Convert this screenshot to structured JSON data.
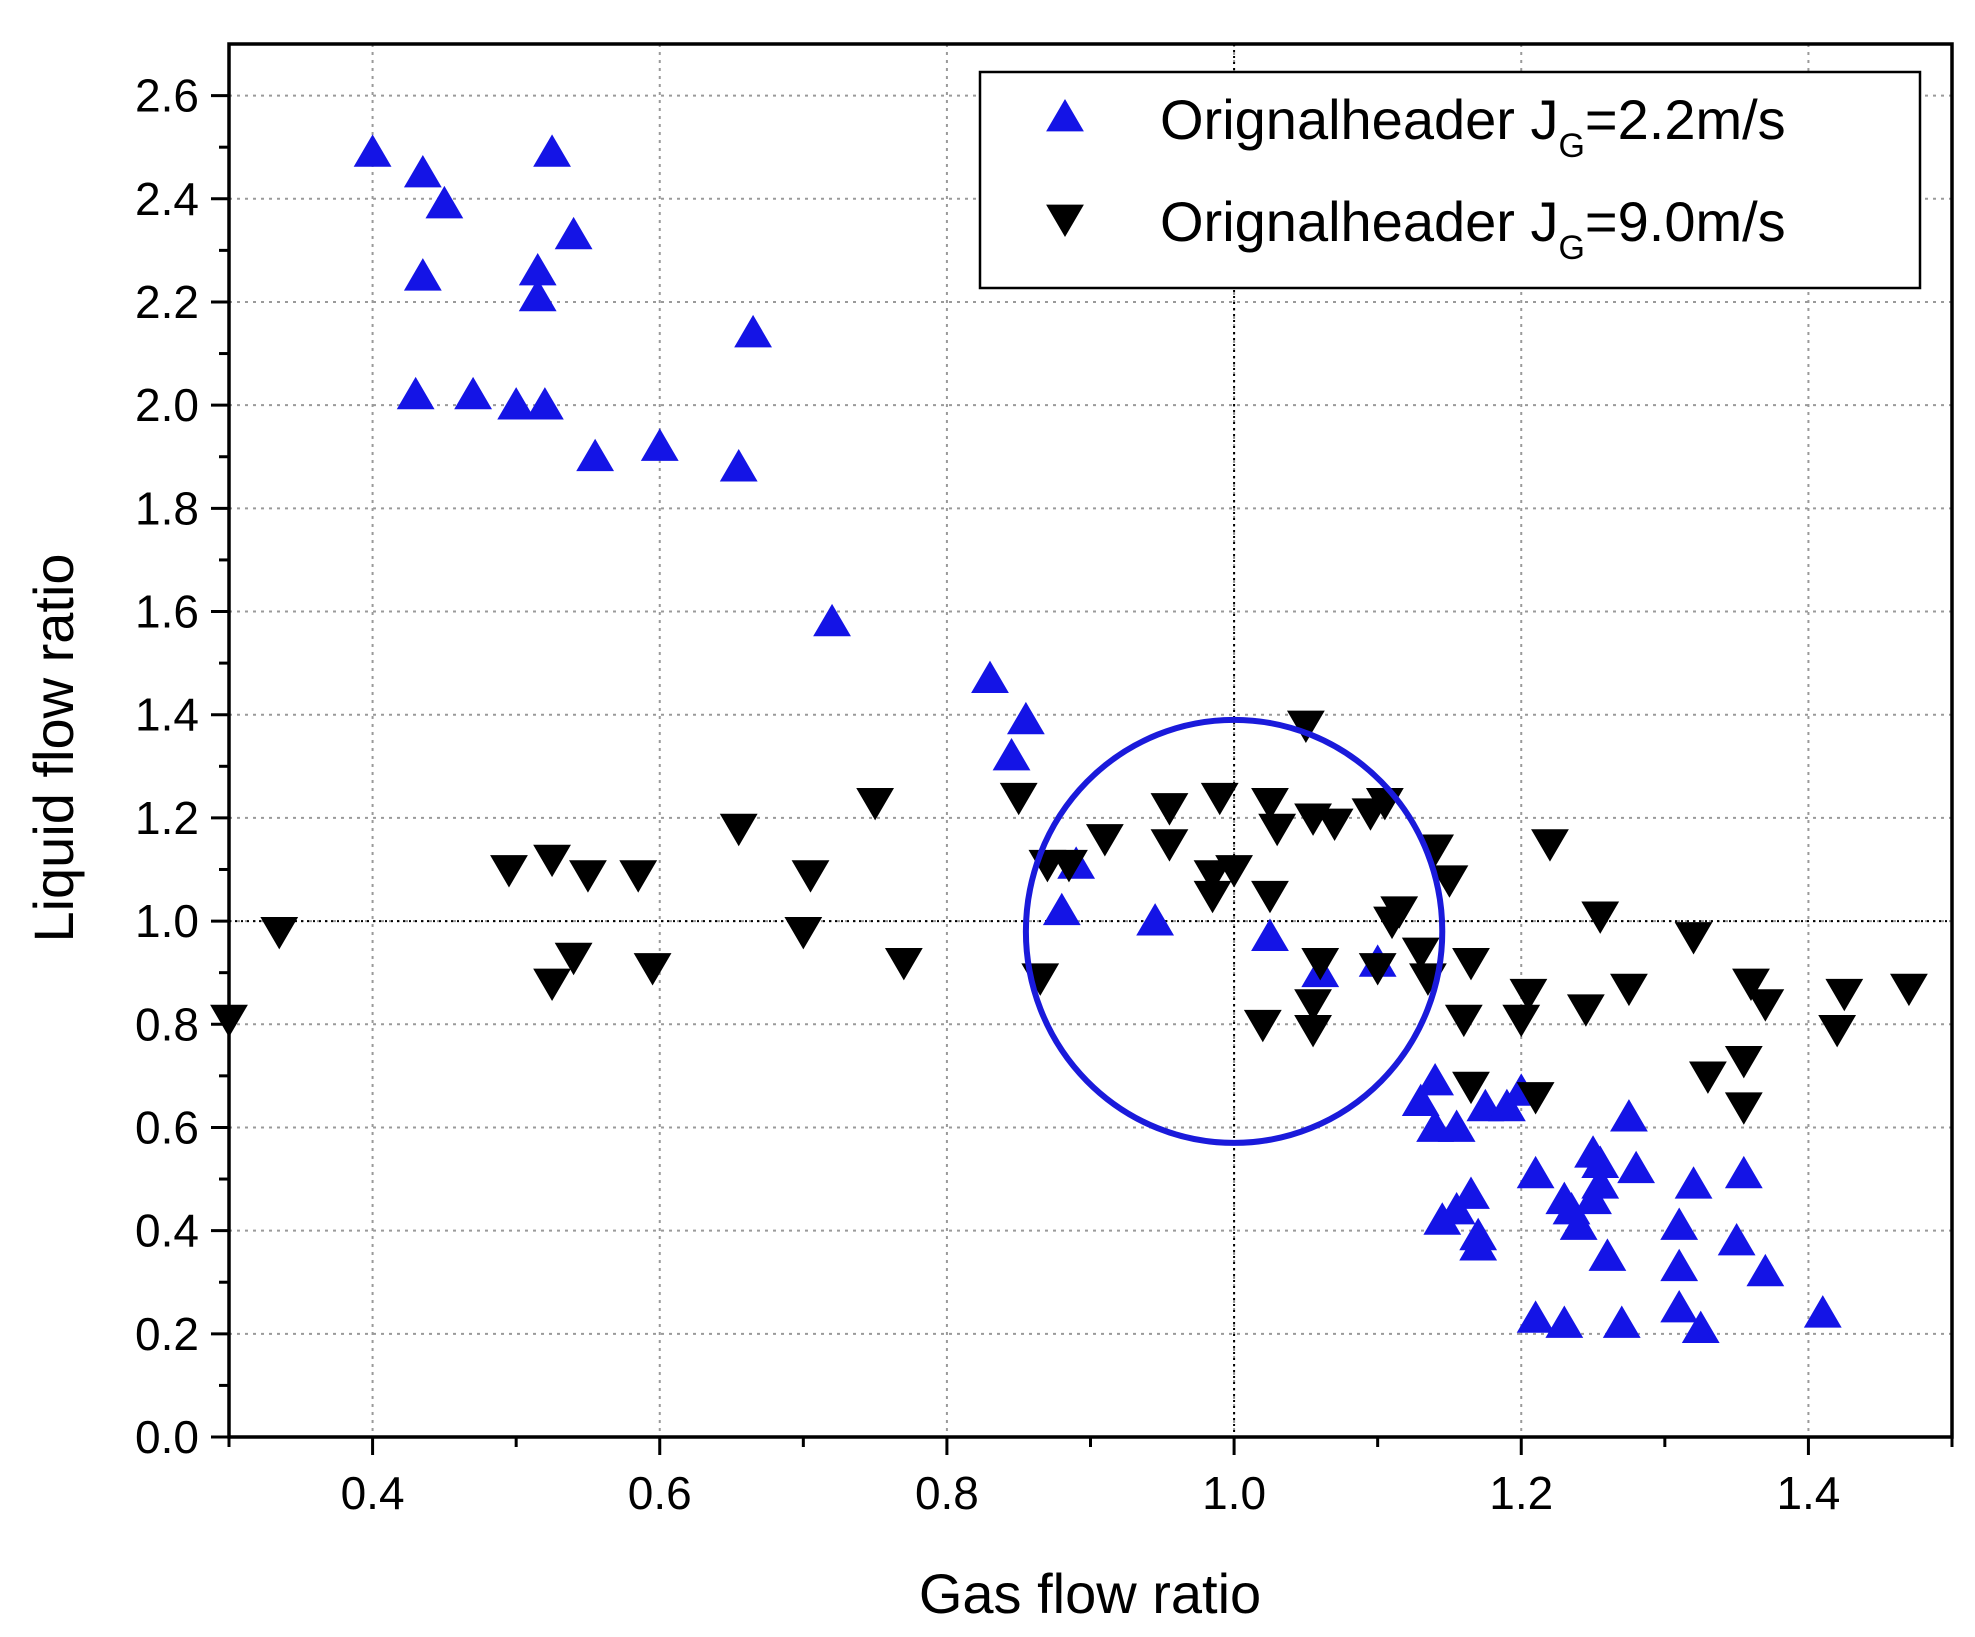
{
  "chart_data": {
    "type": "scatter",
    "title": "",
    "xlabel": "Gas flow ratio",
    "ylabel": "Liquid flow ratio",
    "xlim": [
      0.3,
      1.5
    ],
    "ylim": [
      0.0,
      2.7
    ],
    "x_ticks": [
      0.4,
      0.6,
      0.8,
      1.0,
      1.2,
      1.4
    ],
    "x_tick_labels": [
      "0.4",
      "0.6",
      "0.8",
      "1.0",
      "1.2",
      "1.4"
    ],
    "y_ticks": [
      0.0,
      0.2,
      0.4,
      0.6,
      0.8,
      1.0,
      1.2,
      1.4,
      1.6,
      1.8,
      2.0,
      2.2,
      2.4,
      2.6
    ],
    "y_tick_labels": [
      "0.0",
      "0.2",
      "0.4",
      "0.6",
      "0.8",
      "1.0",
      "1.2",
      "1.4",
      "1.6",
      "1.8",
      "2.0",
      "2.2",
      "2.4",
      "2.6"
    ],
    "grid": true,
    "legend_position": "top-right",
    "reference_lines": {
      "x": 1.0,
      "y": 1.0
    },
    "annotation_circle": {
      "cx": 1.0,
      "cy": 0.98,
      "rx": 0.145,
      "ry": 0.41,
      "color": "#1a1adb"
    },
    "series": [
      {
        "name": "Orignalheader",
        "legend_prefix": "Orignalheader J",
        "legend_subscript": "G",
        "legend_suffix": "=2.2m/s",
        "marker": "triangle-up",
        "color": "#1414e6",
        "points": [
          [
            0.4,
            2.49
          ],
          [
            0.435,
            2.45
          ],
          [
            0.45,
            2.39
          ],
          [
            0.435,
            2.25
          ],
          [
            0.525,
            2.49
          ],
          [
            0.54,
            2.33
          ],
          [
            0.515,
            2.26
          ],
          [
            0.515,
            2.21
          ],
          [
            0.43,
            2.02
          ],
          [
            0.47,
            2.02
          ],
          [
            0.5,
            2.0
          ],
          [
            0.52,
            2.0
          ],
          [
            0.555,
            1.9
          ],
          [
            0.6,
            1.92
          ],
          [
            0.655,
            1.88
          ],
          [
            0.665,
            2.14
          ],
          [
            0.72,
            1.58
          ],
          [
            0.83,
            1.47
          ],
          [
            0.855,
            1.39
          ],
          [
            0.845,
            1.32
          ],
          [
            0.89,
            1.11
          ],
          [
            0.88,
            1.02
          ],
          [
            0.945,
            1.0
          ],
          [
            1.025,
            0.97
          ],
          [
            1.06,
            0.9
          ],
          [
            1.1,
            0.92
          ],
          [
            1.14,
            0.69
          ],
          [
            1.13,
            0.65
          ],
          [
            1.14,
            0.6
          ],
          [
            1.155,
            0.6
          ],
          [
            1.175,
            0.64
          ],
          [
            1.19,
            0.64
          ],
          [
            1.2,
            0.67
          ],
          [
            1.165,
            0.47
          ],
          [
            1.155,
            0.44
          ],
          [
            1.145,
            0.42
          ],
          [
            1.17,
            0.39
          ],
          [
            1.17,
            0.37
          ],
          [
            1.21,
            0.51
          ],
          [
            1.23,
            0.46
          ],
          [
            1.235,
            0.44
          ],
          [
            1.25,
            0.55
          ],
          [
            1.255,
            0.53
          ],
          [
            1.255,
            0.49
          ],
          [
            1.25,
            0.46
          ],
          [
            1.24,
            0.41
          ],
          [
            1.26,
            0.35
          ],
          [
            1.275,
            0.62
          ],
          [
            1.28,
            0.52
          ],
          [
            1.32,
            0.49
          ],
          [
            1.31,
            0.41
          ],
          [
            1.355,
            0.51
          ],
          [
            1.35,
            0.38
          ],
          [
            1.31,
            0.33
          ],
          [
            1.37,
            0.32
          ],
          [
            1.21,
            0.23
          ],
          [
            1.23,
            0.22
          ],
          [
            1.27,
            0.22
          ],
          [
            1.31,
            0.25
          ],
          [
            1.325,
            0.21
          ],
          [
            1.41,
            0.24
          ]
        ]
      },
      {
        "name": "Orignalheader",
        "legend_prefix": "Orignalheader J",
        "legend_subscript": "G",
        "legend_suffix": "=9.0m/s",
        "marker": "triangle-down",
        "color": "#000000",
        "points": [
          [
            0.3,
            0.81
          ],
          [
            0.335,
            0.98
          ],
          [
            0.495,
            1.1
          ],
          [
            0.525,
            1.12
          ],
          [
            0.55,
            1.09
          ],
          [
            0.585,
            1.09
          ],
          [
            0.54,
            0.93
          ],
          [
            0.525,
            0.88
          ],
          [
            0.595,
            0.91
          ],
          [
            0.655,
            1.18
          ],
          [
            0.705,
            1.09
          ],
          [
            0.7,
            0.98
          ],
          [
            0.75,
            1.23
          ],
          [
            0.77,
            0.92
          ],
          [
            0.85,
            1.24
          ],
          [
            0.87,
            1.11
          ],
          [
            0.885,
            1.11
          ],
          [
            0.91,
            1.16
          ],
          [
            0.865,
            0.89
          ],
          [
            0.955,
            1.22
          ],
          [
            0.955,
            1.15
          ],
          [
            0.99,
            1.24
          ],
          [
            0.985,
            1.09
          ],
          [
            1.0,
            1.1
          ],
          [
            0.985,
            1.05
          ],
          [
            1.025,
            1.23
          ],
          [
            1.03,
            1.18
          ],
          [
            1.05,
            1.38
          ],
          [
            1.055,
            1.2
          ],
          [
            1.07,
            1.19
          ],
          [
            1.095,
            1.21
          ],
          [
            1.105,
            1.23
          ],
          [
            1.025,
            1.05
          ],
          [
            1.06,
            0.92
          ],
          [
            1.055,
            0.84
          ],
          [
            1.055,
            0.79
          ],
          [
            1.02,
            0.8
          ],
          [
            1.1,
            0.91
          ],
          [
            1.115,
            1.02
          ],
          [
            1.11,
            1.0
          ],
          [
            1.14,
            1.14
          ],
          [
            1.15,
            1.08
          ],
          [
            1.13,
            0.94
          ],
          [
            1.135,
            0.89
          ],
          [
            1.165,
            0.92
          ],
          [
            1.16,
            0.81
          ],
          [
            1.165,
            0.68
          ],
          [
            1.205,
            0.86
          ],
          [
            1.2,
            0.81
          ],
          [
            1.21,
            0.66
          ],
          [
            1.22,
            1.15
          ],
          [
            1.255,
            1.01
          ],
          [
            1.245,
            0.83
          ],
          [
            1.275,
            0.87
          ],
          [
            1.32,
            0.97
          ],
          [
            1.33,
            0.7
          ],
          [
            1.36,
            0.88
          ],
          [
            1.37,
            0.84
          ],
          [
            1.355,
            0.73
          ],
          [
            1.355,
            0.64
          ],
          [
            1.425,
            0.86
          ],
          [
            1.42,
            0.79
          ],
          [
            1.47,
            0.87
          ]
        ]
      }
    ]
  }
}
